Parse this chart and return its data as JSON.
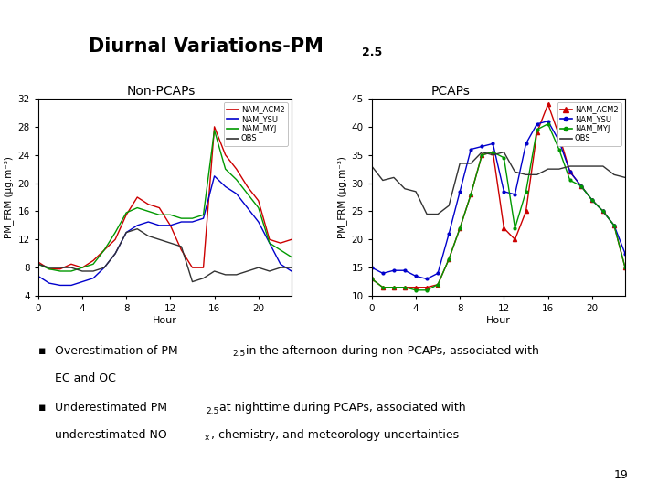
{
  "title": "Diurnal Variations-PM",
  "title_sub": "2.5",
  "subtitle_left": "Non-PCAPs",
  "subtitle_right": "PCAPs",
  "header_bg": "#1e3a6e",
  "header_stripe": "#2e5aa0",
  "slide_bg": "#ffffff",
  "bullet1_line1": "Overestimation of PM",
  "bullet1_sub1": "2.5",
  "bullet1_line1rest": " in the afternoon during non-PCAPs, associated with",
  "bullet1_line2": "EC and OC",
  "bullet2_line1": "Underestimated PM",
  "bullet2_sub1": "2.5",
  "bullet2_line1rest": " at nighttime during PCAPs, associated with",
  "bullet2_line2": "underestimated NO",
  "bullet2_sub2": "x",
  "bullet2_line2rest": ", chemistry, and meteorology uncertainties",
  "page_num": "19",
  "non_pcap": {
    "hours": [
      0,
      1,
      2,
      3,
      4,
      5,
      6,
      7,
      8,
      9,
      10,
      11,
      12,
      13,
      14,
      15,
      16,
      17,
      18,
      19,
      20,
      21,
      22,
      23
    ],
    "NAM_ACM2": [
      8.8,
      7.8,
      7.8,
      8.5,
      8.0,
      9.0,
      10.5,
      12.0,
      15.5,
      18.0,
      17.0,
      16.5,
      14.0,
      10.5,
      8.0,
      8.0,
      28.0,
      24.0,
      22.0,
      19.5,
      17.5,
      12.0,
      11.5,
      12.0
    ],
    "NAM_YSU": [
      6.8,
      5.8,
      5.5,
      5.5,
      6.0,
      6.5,
      8.0,
      10.0,
      13.0,
      14.0,
      14.5,
      14.0,
      14.0,
      14.5,
      14.5,
      15.0,
      21.0,
      19.5,
      18.5,
      16.5,
      14.5,
      11.5,
      8.5,
      7.5
    ],
    "NAM_MYJ": [
      8.5,
      7.8,
      7.5,
      7.5,
      8.0,
      8.5,
      10.5,
      13.0,
      15.8,
      16.5,
      16.0,
      15.5,
      15.5,
      15.0,
      15.0,
      15.5,
      27.5,
      22.0,
      20.5,
      18.5,
      16.5,
      11.5,
      10.5,
      9.5
    ],
    "OBS": [
      8.5,
      8.0,
      8.0,
      8.0,
      7.5,
      7.5,
      8.0,
      10.0,
      13.0,
      13.5,
      12.5,
      12.0,
      11.5,
      11.0,
      6.0,
      6.5,
      7.5,
      7.0,
      7.0,
      7.5,
      8.0,
      7.5,
      8.0,
      8.0
    ],
    "ylim": [
      4,
      32
    ],
    "yticks": [
      4,
      8,
      12,
      16,
      20,
      24,
      28,
      32
    ],
    "xticks": [
      0,
      4,
      8,
      12,
      16,
      20
    ],
    "ylabel": "PM_FRM (μg.m⁻³)"
  },
  "pcap": {
    "hours": [
      0,
      1,
      2,
      3,
      4,
      5,
      6,
      7,
      8,
      9,
      10,
      11,
      12,
      13,
      14,
      15,
      16,
      17,
      18,
      19,
      20,
      21,
      22,
      23
    ],
    "NAM_ACM2": [
      13.0,
      11.5,
      11.5,
      11.5,
      11.5,
      11.5,
      12.0,
      16.5,
      22.0,
      28.0,
      35.0,
      35.5,
      22.0,
      20.0,
      25.0,
      39.0,
      44.0,
      38.5,
      32.0,
      29.5,
      27.0,
      25.0,
      22.5,
      15.0
    ],
    "NAM_YSU": [
      15.0,
      14.0,
      14.5,
      14.5,
      13.5,
      13.0,
      14.0,
      21.0,
      28.5,
      36.0,
      36.5,
      37.0,
      28.5,
      28.0,
      37.0,
      40.5,
      41.0,
      37.5,
      32.0,
      29.5,
      27.0,
      25.0,
      22.5,
      17.5
    ],
    "NAM_MYJ": [
      13.0,
      11.5,
      11.5,
      11.5,
      11.0,
      11.0,
      12.0,
      16.5,
      22.0,
      28.0,
      35.0,
      35.5,
      34.5,
      22.0,
      28.5,
      39.5,
      40.5,
      36.0,
      30.5,
      29.5,
      27.0,
      25.0,
      22.5,
      15.0
    ],
    "OBS": [
      33.0,
      30.5,
      31.0,
      29.0,
      28.5,
      24.5,
      24.5,
      26.0,
      33.5,
      33.5,
      35.5,
      35.0,
      35.5,
      32.0,
      31.5,
      31.5,
      32.5,
      32.5,
      33.0,
      33.0,
      33.0,
      33.0,
      31.5,
      31.0
    ],
    "ylim": [
      10,
      45
    ],
    "yticks": [
      10,
      15,
      20,
      25,
      30,
      35,
      40,
      45
    ],
    "xticks": [
      0,
      4,
      8,
      12,
      16,
      20
    ],
    "ylabel": "PM_FRM (μg.m⁻³)"
  },
  "colors": {
    "NAM_ACM2": "#cc0000",
    "NAM_YSU": "#0000cc",
    "NAM_MYJ": "#009900",
    "OBS": "#333333"
  },
  "legend_labels": [
    "NAM_ACM2",
    "NAM_YSU",
    "NAM_MYJ",
    "OBS"
  ]
}
